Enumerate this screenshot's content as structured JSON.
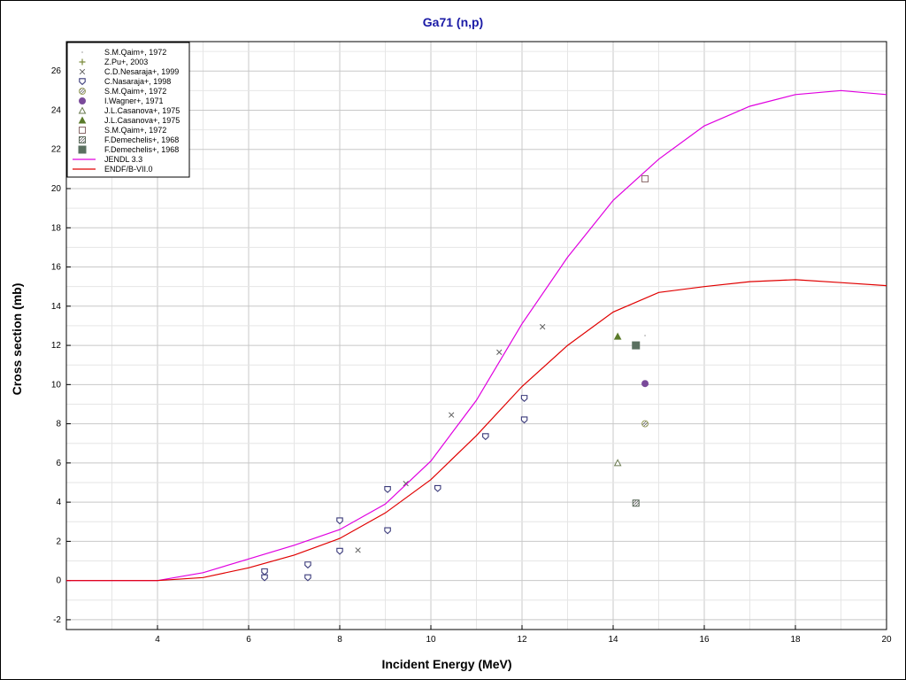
{
  "chart_data": {
    "type": "scatter",
    "title": "Ga71 (n,p)",
    "xlabel": "Incident Energy (MeV)",
    "ylabel": "Cross section (mb)",
    "xlim": [
      2.0,
      20.0
    ],
    "ylim": [
      -2.5,
      27.5
    ],
    "x_ticks": [
      4,
      6,
      8,
      10,
      12,
      14,
      16,
      18,
      20
    ],
    "y_ticks": [
      -2,
      0,
      2,
      4,
      6,
      8,
      10,
      12,
      14,
      16,
      18,
      20,
      22,
      24,
      26
    ],
    "grid": true,
    "legend_position": "top-left",
    "series": [
      {
        "name": "S.M.Qaim+, 1972",
        "kind": "points",
        "marker": "dot",
        "color": "#b0b0b0",
        "points": [
          [
            14.7,
            12.5
          ]
        ]
      },
      {
        "name": "Z.Pu+, 2003",
        "kind": "points",
        "marker": "plus",
        "color": "#7a8a3a",
        "points": []
      },
      {
        "name": "C.D.Nesaraja+, 1999",
        "kind": "points",
        "marker": "x",
        "color": "#606060",
        "points": [
          [
            8.4,
            1.55
          ],
          [
            9.45,
            4.95
          ],
          [
            10.45,
            8.45
          ],
          [
            11.5,
            11.65
          ],
          [
            12.45,
            12.95
          ]
        ]
      },
      {
        "name": "C.Nasaraja+, 1998",
        "kind": "points",
        "marker": "shield",
        "color": "#3a3a7a",
        "points": [
          [
            6.35,
            0.15
          ],
          [
            6.35,
            0.45
          ],
          [
            7.3,
            0.15
          ],
          [
            7.3,
            0.8
          ],
          [
            8.0,
            1.5
          ],
          [
            8.0,
            3.05
          ],
          [
            9.05,
            2.55
          ],
          [
            9.05,
            4.65
          ],
          [
            10.15,
            4.7
          ],
          [
            11.2,
            7.35
          ],
          [
            12.05,
            8.2
          ],
          [
            12.05,
            9.3
          ]
        ]
      },
      {
        "name": "S.M.Qaim+, 1972",
        "kind": "points",
        "marker": "circle-hatch",
        "color": "#9aa060",
        "points": [
          [
            14.7,
            8.0
          ]
        ]
      },
      {
        "name": "I.Wagner+, 1971",
        "kind": "points",
        "marker": "circle-filled",
        "color": "#7a4a9a",
        "points": [
          [
            14.7,
            10.05
          ]
        ]
      },
      {
        "name": "J.L.Casanova+, 1975",
        "kind": "points",
        "marker": "triangle-open",
        "color": "#6a7a50",
        "points": [
          [
            14.1,
            6.0
          ]
        ]
      },
      {
        "name": "J.L.Casanova+, 1975",
        "kind": "points",
        "marker": "triangle-filled",
        "color": "#5a7a2a",
        "points": [
          [
            14.1,
            12.45
          ]
        ]
      },
      {
        "name": "S.M.Qaim+, 1972",
        "kind": "points",
        "marker": "square-open",
        "color": "#8a6a6a",
        "points": [
          [
            14.7,
            20.5
          ]
        ]
      },
      {
        "name": "F.Demechelis+, 1968",
        "kind": "points",
        "marker": "square-hatch",
        "color": "#5a6a5a",
        "points": [
          [
            14.5,
            3.95
          ]
        ]
      },
      {
        "name": "F.Demechelis+, 1968",
        "kind": "points",
        "marker": "square-filled",
        "color": "#5a7060",
        "points": [
          [
            14.5,
            12.0
          ]
        ]
      },
      {
        "name": "JENDL 3.3",
        "kind": "line",
        "color": "#e000e0",
        "points": [
          [
            2.0,
            0.0
          ],
          [
            4.0,
            0.0
          ],
          [
            5.0,
            0.4
          ],
          [
            6.0,
            1.1
          ],
          [
            7.0,
            1.8
          ],
          [
            8.0,
            2.6
          ],
          [
            9.0,
            3.9
          ],
          [
            10.0,
            6.1
          ],
          [
            11.0,
            9.2
          ],
          [
            12.0,
            13.1
          ],
          [
            13.0,
            16.5
          ],
          [
            14.0,
            19.4
          ],
          [
            15.0,
            21.5
          ],
          [
            16.0,
            23.2
          ],
          [
            17.0,
            24.2
          ],
          [
            18.0,
            24.8
          ],
          [
            19.0,
            25.0
          ],
          [
            20.0,
            24.8
          ]
        ]
      },
      {
        "name": "ENDF/B-VII.0",
        "kind": "line",
        "color": "#e00000",
        "points": [
          [
            2.0,
            0.0
          ],
          [
            4.0,
            0.0
          ],
          [
            5.0,
            0.15
          ],
          [
            6.0,
            0.65
          ],
          [
            7.0,
            1.3
          ],
          [
            8.0,
            2.15
          ],
          [
            9.0,
            3.45
          ],
          [
            10.0,
            5.15
          ],
          [
            11.0,
            7.4
          ],
          [
            12.0,
            9.9
          ],
          [
            13.0,
            12.0
          ],
          [
            14.0,
            13.7
          ],
          [
            15.0,
            14.7
          ],
          [
            16.0,
            15.0
          ],
          [
            17.0,
            15.25
          ],
          [
            18.0,
            15.35
          ],
          [
            19.0,
            15.2
          ],
          [
            20.0,
            15.05
          ]
        ]
      }
    ]
  }
}
